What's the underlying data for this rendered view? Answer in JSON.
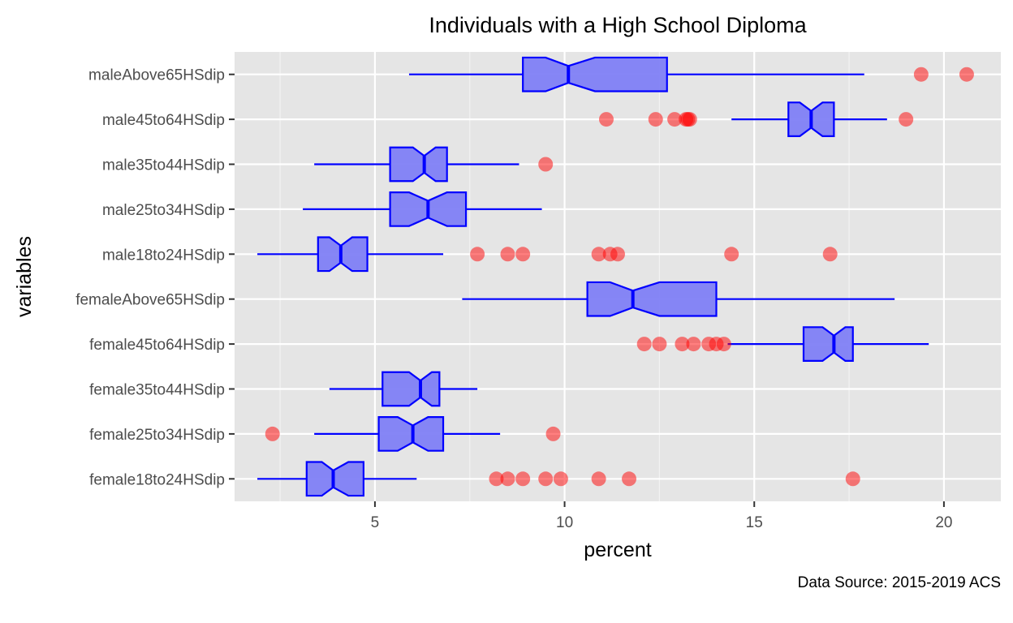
{
  "chart_data": {
    "type": "boxplot",
    "orientation": "horizontal",
    "notched": true,
    "title": "Individuals with a High School Diploma",
    "xlabel": "percent",
    "ylabel": "variables",
    "caption": "Data Source: 2015-2019 ACS",
    "xlim": [
      1.3,
      21.5
    ],
    "xticks": [
      5,
      10,
      15,
      20
    ],
    "grid": true,
    "colors": {
      "panel": "#e5e5e5",
      "grid_major": "#ffffff",
      "box_fill": "#7f7ff5",
      "box_line": "#0000ff",
      "outlier": "#ff0000"
    },
    "categories": [
      "maleAbove65HSdip",
      "male45to64HSdip",
      "male35to44HSdip",
      "male25to34HSdip",
      "male18to24HSdip",
      "femaleAbove65HSdip",
      "female45to64HSdip",
      "female35to44HSdip",
      "female25to34HSdip",
      "female18to24HSdip"
    ],
    "boxes": [
      {
        "category": "maleAbove65HSdip",
        "whisker_low": 5.9,
        "q1": 8.9,
        "median": 10.1,
        "q3": 12.7,
        "whisker_high": 17.9,
        "notch_low": 9.5,
        "notch_high": 10.8,
        "outliers": [
          19.4,
          20.6
        ]
      },
      {
        "category": "male45to64HSdip",
        "whisker_low": 14.4,
        "q1": 15.9,
        "median": 16.5,
        "q3": 17.1,
        "whisker_high": 18.5,
        "notch_low": 16.2,
        "notch_high": 16.8,
        "outliers": [
          11.1,
          12.4,
          12.9,
          13.2,
          13.25,
          13.3,
          19.0
        ]
      },
      {
        "category": "male35to44HSdip",
        "whisker_low": 3.4,
        "q1": 5.4,
        "median": 6.3,
        "q3": 6.9,
        "whisker_high": 8.8,
        "notch_low": 6.0,
        "notch_high": 6.6,
        "outliers": [
          9.5
        ]
      },
      {
        "category": "male25to34HSdip",
        "whisker_low": 3.1,
        "q1": 5.4,
        "median": 6.4,
        "q3": 7.4,
        "whisker_high": 9.4,
        "notch_low": 5.9,
        "notch_high": 6.9,
        "outliers": []
      },
      {
        "category": "male18to24HSdip",
        "whisker_low": 1.9,
        "q1": 3.5,
        "median": 4.1,
        "q3": 4.8,
        "whisker_high": 6.8,
        "notch_low": 3.8,
        "notch_high": 4.4,
        "outliers": [
          7.7,
          8.5,
          8.9,
          10.9,
          11.2,
          11.4,
          14.4,
          17.0
        ]
      },
      {
        "category": "femaleAbove65HSdip",
        "whisker_low": 7.3,
        "q1": 10.6,
        "median": 11.8,
        "q3": 14.0,
        "whisker_high": 18.7,
        "notch_low": 11.2,
        "notch_high": 12.5,
        "outliers": []
      },
      {
        "category": "female45to64HSdip",
        "whisker_low": 14.3,
        "q1": 16.3,
        "median": 17.1,
        "q3": 17.6,
        "whisker_high": 19.6,
        "notch_low": 16.8,
        "notch_high": 17.4,
        "outliers": [
          12.1,
          12.5,
          13.1,
          13.4,
          13.8,
          14.0,
          14.2
        ]
      },
      {
        "category": "female35to44HSdip",
        "whisker_low": 3.8,
        "q1": 5.2,
        "median": 6.2,
        "q3": 6.7,
        "whisker_high": 7.7,
        "notch_low": 5.9,
        "notch_high": 6.5,
        "outliers": []
      },
      {
        "category": "female25to34HSdip",
        "whisker_low": 3.4,
        "q1": 5.1,
        "median": 6.0,
        "q3": 6.8,
        "whisker_high": 8.3,
        "notch_low": 5.6,
        "notch_high": 6.4,
        "outliers": [
          2.3,
          9.7
        ]
      },
      {
        "category": "female18to24HSdip",
        "whisker_low": 1.9,
        "q1": 3.2,
        "median": 3.9,
        "q3": 4.7,
        "whisker_high": 6.1,
        "notch_low": 3.6,
        "notch_high": 4.3,
        "outliers": [
          8.2,
          8.5,
          8.9,
          9.5,
          9.9,
          10.9,
          11.7,
          17.6
        ]
      }
    ]
  }
}
